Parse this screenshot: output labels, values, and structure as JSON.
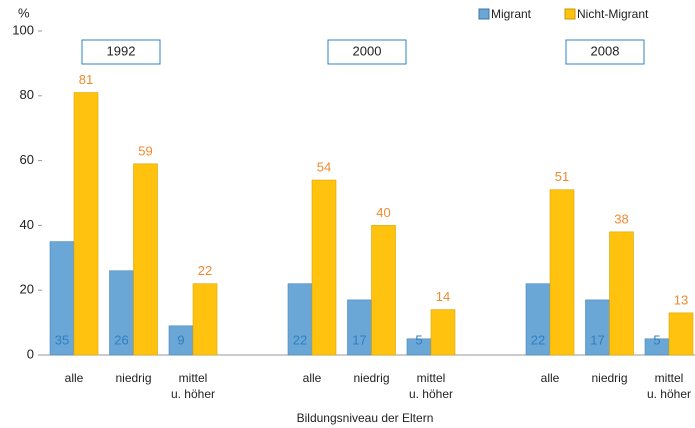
{
  "chart_data": {
    "type": "bar",
    "y_label": "%",
    "x_label": "Bildungsniveau der Eltern",
    "group_labels": [
      "1992",
      "2000",
      "2008"
    ],
    "categories": [
      "alle",
      "niedrig",
      "mittel\nu. höher",
      "alle",
      "niedrig",
      "mittel\nu. höher",
      "alle",
      "niedrig",
      "mittel\nu. höher"
    ],
    "series": [
      {
        "name": "Migrant",
        "color": "#6aa6d6",
        "values": [
          35,
          26,
          9,
          22,
          17,
          5,
          22,
          17,
          5
        ]
      },
      {
        "name": "Nicht-Migrant",
        "color": "#ffc20e",
        "values": [
          81,
          59,
          22,
          54,
          40,
          14,
          51,
          38,
          13
        ]
      }
    ],
    "ylim": [
      0,
      100
    ],
    "yticks": [
      0,
      20,
      40,
      60,
      80,
      100
    ],
    "grid": false,
    "legend": "top-right"
  }
}
